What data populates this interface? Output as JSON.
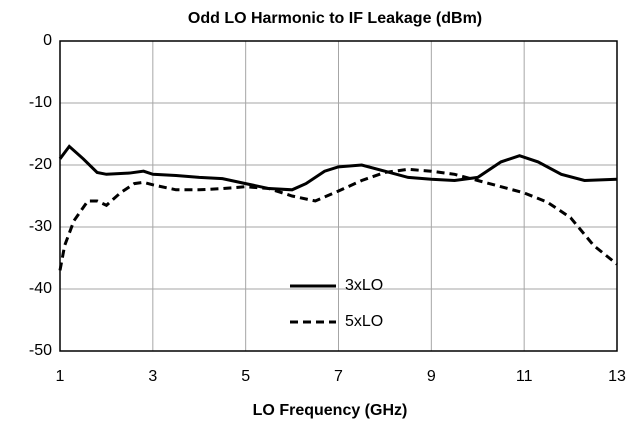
{
  "chart_data": {
    "type": "line",
    "title": "Odd LO Harmonic to IF Leakage (dBm)",
    "x_label": "LO Frequency  (GHz)",
    "xlim": [
      1,
      13
    ],
    "xticks": [
      1,
      3,
      5,
      7,
      9,
      11,
      13
    ],
    "ylim": [
      -50,
      0
    ],
    "yticks": [
      0,
      -10,
      -20,
      -30,
      -40,
      -50
    ],
    "grid": true,
    "legend": "bottom-center",
    "series": [
      {
        "name": "3xLO",
        "color": "#000000",
        "linestyle": "solid",
        "x": [
          1,
          1.2,
          1.5,
          1.8,
          2,
          2.5,
          2.8,
          3,
          3.5,
          4,
          4.5,
          5,
          5.5,
          6,
          6.3,
          6.7,
          7,
          7.5,
          8,
          8.5,
          9,
          9.5,
          10,
          10.5,
          10.9,
          11.3,
          11.8,
          12.3,
          13
        ],
        "values": [
          -19,
          -17,
          -19,
          -21.2,
          -21.5,
          -21.3,
          -21,
          -21.5,
          -21.7,
          -22,
          -22.2,
          -23,
          -23.8,
          -24,
          -23,
          -21,
          -20.3,
          -20,
          -21,
          -22,
          -22.3,
          -22.5,
          -22,
          -19.5,
          -18.5,
          -19.5,
          -21.5,
          -22.5,
          -22.3
        ]
      },
      {
        "name": "5xLO",
        "color": "#000000",
        "linestyle": "dashed",
        "x": [
          1,
          1.1,
          1.3,
          1.6,
          1.8,
          2,
          2.3,
          2.6,
          2.8,
          3,
          3.5,
          4,
          4.5,
          5,
          5.5,
          6,
          6.5,
          7,
          7.5,
          8,
          8.5,
          9,
          9.5,
          10,
          10.5,
          11,
          11.5,
          12,
          12.5,
          13
        ],
        "values": [
          -37,
          -33,
          -29,
          -25.8,
          -25.8,
          -26.5,
          -24.5,
          -23,
          -22.8,
          -23.2,
          -24,
          -24,
          -23.8,
          -23.5,
          -23.8,
          -25,
          -25.8,
          -24.2,
          -22.5,
          -21.2,
          -20.7,
          -21,
          -21.5,
          -22.5,
          -23.5,
          -24.5,
          -26,
          -28.5,
          -33,
          -36
        ]
      }
    ]
  }
}
